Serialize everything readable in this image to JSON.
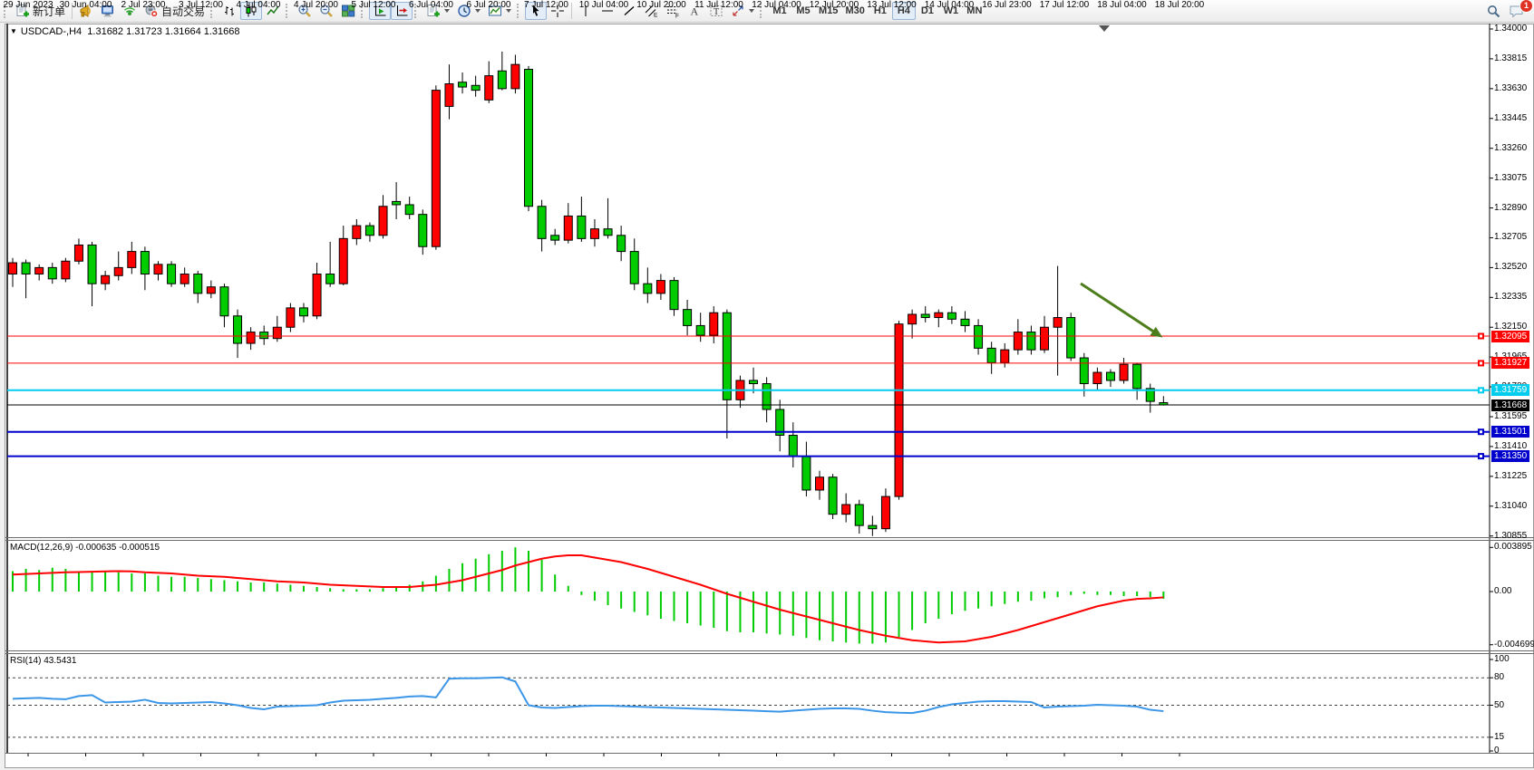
{
  "toolbar": {
    "new_order_label": "新订单",
    "auto_trading_label": "自动交易",
    "timeframes": [
      "M1",
      "M5",
      "M15",
      "M30",
      "H1",
      "H4",
      "D1",
      "W1",
      "MN"
    ],
    "active_timeframe": "H4",
    "notification_count": "1",
    "icons": [
      "new-order-icon",
      "horn-icon",
      "terminal-icon",
      "signal-icon",
      "autotrade-robot-icon",
      "bar-chart-icon",
      "candlestick-chart-icon",
      "line-chart-icon",
      "zoom-in-icon",
      "zoom-out-icon",
      "tile-windows-icon",
      "auto-scroll-icon",
      "chart-shift-icon",
      "indicators-icon",
      "periods-icon",
      "templates-icon",
      "cursor-icon",
      "crosshair-icon",
      "vertical-line-icon",
      "horizontal-line-icon",
      "trendline-icon",
      "channel-icon",
      "fibonacci-icon",
      "text-icon",
      "text-label-icon",
      "arrows-icon",
      "search-icon",
      "chat-icon"
    ]
  },
  "chart": {
    "symbol_period": "USDCAD-,H4",
    "ohlc_text": "1.31682 1.31723 1.31664 1.31668",
    "current_bid": "1.31668",
    "colors": {
      "bull_candle": "#ff0000",
      "bear_candle": "#00cc00",
      "macd_histogram": "#00cc00",
      "macd_signal": "#ff0000",
      "rsi_line": "#3c96e8",
      "annotation_arrow": "#4e7d1c"
    }
  },
  "price_axis": {
    "ticks": [
      "1.34000",
      "1.33815",
      "1.33630",
      "1.33445",
      "1.33260",
      "1.33075",
      "1.32890",
      "1.32705",
      "1.32520",
      "1.32335",
      "1.32150",
      "1.31965",
      "1.31780",
      "1.31595",
      "1.31410",
      "1.31225",
      "1.31040",
      "1.30855"
    ]
  },
  "hlines": [
    {
      "price": "1.32095",
      "value": 1.32095,
      "color": "#ff0000",
      "width": 1
    },
    {
      "price": "1.31927",
      "value": 1.31927,
      "color": "#ff0000",
      "width": 1
    },
    {
      "price": "1.31759",
      "value": 1.31759,
      "color": "#00ccee",
      "width": 2
    },
    {
      "price": "1.31501",
      "value": 1.31501,
      "color": "#0000cc",
      "width": 2
    },
    {
      "price": "1.31350",
      "value": 1.3135,
      "color": "#0000cc",
      "width": 2
    }
  ],
  "indicators": {
    "macd": {
      "label": "MACD(12,26,9) -0.000635 -0.000515",
      "axis_ticks": [
        {
          "text": "0.003895",
          "value": 0.003895
        },
        {
          "text": "0.00",
          "value": 0
        },
        {
          "text": "-0.004699",
          "value": -0.004699
        }
      ]
    },
    "rsi": {
      "label": "RSI(14) 43.5431",
      "axis_ticks": [
        {
          "text": "100",
          "value": 100
        },
        {
          "text": "80",
          "value": 80
        },
        {
          "text": "50",
          "value": 50
        },
        {
          "text": "15",
          "value": 15
        },
        {
          "text": "0",
          "value": 0
        }
      ],
      "dashed_levels": [
        80,
        50,
        15
      ]
    }
  },
  "annotation": {
    "type": "arrow",
    "direction": "down-right",
    "color": "#4e7d1c",
    "from": [
      1192,
      313
    ],
    "to": [
      1274,
      367
    ]
  },
  "chart_data": {
    "type": "candlestick",
    "title": "USDCAD-,H4 1.31682 1.31723 1.31664 1.31668",
    "price_range": [
      1.30855,
      1.34
    ],
    "x_labels": [
      "29 Jun 2023",
      "30 Jun 04:00",
      "2 Jul 23:00",
      "3 Jul 12:00",
      "4 Jul 04:00",
      "4 Jul 20:00",
      "5 Jul 12:00",
      "6 Jul 04:00",
      "6 Jul 20:00",
      "7 Jul 12:00",
      "10 Jul 04:00",
      "10 Jul 20:00",
      "11 Jul 12:00",
      "12 Jul 04:00",
      "12 Jul 20:00",
      "13 Jul 12:00",
      "14 Jul 04:00",
      "16 Jul 23:00",
      "17 Jul 12:00",
      "18 Jul 04:00",
      "18 Jul 20:00"
    ],
    "candles_ohlc": [
      [
        1.3248,
        1.3258,
        1.324,
        1.3255
      ],
      [
        1.3255,
        1.3257,
        1.3233,
        1.3248
      ],
      [
        1.3248,
        1.3254,
        1.3244,
        1.3252
      ],
      [
        1.3252,
        1.3255,
        1.3242,
        1.3245
      ],
      [
        1.3245,
        1.3258,
        1.3243,
        1.3256
      ],
      [
        1.3256,
        1.327,
        1.3254,
        1.3266
      ],
      [
        1.3266,
        1.3268,
        1.3228,
        1.3242
      ],
      [
        1.3242,
        1.325,
        1.3238,
        1.3247
      ],
      [
        1.3247,
        1.3262,
        1.3244,
        1.3252
      ],
      [
        1.3252,
        1.3268,
        1.3248,
        1.3262
      ],
      [
        1.3262,
        1.3265,
        1.3238,
        1.3248
      ],
      [
        1.3248,
        1.3256,
        1.3244,
        1.3254
      ],
      [
        1.3254,
        1.3256,
        1.324,
        1.3242
      ],
      [
        1.3242,
        1.3252,
        1.324,
        1.3248
      ],
      [
        1.3248,
        1.325,
        1.323,
        1.3236
      ],
      [
        1.3236,
        1.3244,
        1.3233,
        1.324
      ],
      [
        1.324,
        1.3242,
        1.3215,
        1.3222
      ],
      [
        1.3222,
        1.3226,
        1.3196,
        1.3205
      ],
      [
        1.3205,
        1.3215,
        1.3201,
        1.3212
      ],
      [
        1.3212,
        1.3216,
        1.3204,
        1.3208
      ],
      [
        1.3208,
        1.3222,
        1.3206,
        1.3215
      ],
      [
        1.3215,
        1.323,
        1.3212,
        1.3227
      ],
      [
        1.3227,
        1.323,
        1.3218,
        1.3222
      ],
      [
        1.3222,
        1.3255,
        1.322,
        1.3248
      ],
      [
        1.3248,
        1.3268,
        1.324,
        1.3242
      ],
      [
        1.3242,
        1.3278,
        1.3241,
        1.327
      ],
      [
        1.327,
        1.3282,
        1.3266,
        1.3278
      ],
      [
        1.3278,
        1.328,
        1.3268,
        1.3272
      ],
      [
        1.3272,
        1.3297,
        1.327,
        1.329
      ],
      [
        1.3293,
        1.3305,
        1.3282,
        1.3291
      ],
      [
        1.3291,
        1.3296,
        1.3282,
        1.3285
      ],
      [
        1.3285,
        1.3288,
        1.326,
        1.3265
      ],
      [
        1.3265,
        1.3365,
        1.3263,
        1.3362
      ],
      [
        1.3352,
        1.3378,
        1.3344,
        1.3366
      ],
      [
        1.3367,
        1.3373,
        1.336,
        1.3364
      ],
      [
        1.3365,
        1.3371,
        1.3358,
        1.3362
      ],
      [
        1.3356,
        1.338,
        1.3354,
        1.3371
      ],
      [
        1.3374,
        1.3386,
        1.3362,
        1.3363
      ],
      [
        1.3363,
        1.3384,
        1.336,
        1.3378
      ],
      [
        1.3375,
        1.3377,
        1.3287,
        1.329
      ],
      [
        1.329,
        1.3294,
        1.3262,
        1.327
      ],
      [
        1.3272,
        1.3276,
        1.3266,
        1.3269
      ],
      [
        1.3269,
        1.3292,
        1.3267,
        1.3284
      ],
      [
        1.3284,
        1.3296,
        1.3268,
        1.327
      ],
      [
        1.327,
        1.3282,
        1.3265,
        1.3276
      ],
      [
        1.3276,
        1.3295,
        1.327,
        1.3272
      ],
      [
        1.3272,
        1.3278,
        1.3256,
        1.3262
      ],
      [
        1.3262,
        1.327,
        1.3238,
        1.3242
      ],
      [
        1.3242,
        1.3252,
        1.323,
        1.3236
      ],
      [
        1.3236,
        1.3248,
        1.3232,
        1.3244
      ],
      [
        1.3244,
        1.3246,
        1.3222,
        1.3226
      ],
      [
        1.3226,
        1.3232,
        1.321,
        1.3216
      ],
      [
        1.3216,
        1.3224,
        1.3206,
        1.321
      ],
      [
        1.321,
        1.3228,
        1.3205,
        1.3224
      ],
      [
        1.3224,
        1.3226,
        1.3146,
        1.317
      ],
      [
        1.317,
        1.3185,
        1.3165,
        1.3182
      ],
      [
        1.3182,
        1.319,
        1.3174,
        1.318
      ],
      [
        1.318,
        1.3184,
        1.3156,
        1.3164
      ],
      [
        1.3164,
        1.317,
        1.3138,
        1.3148
      ],
      [
        1.3148,
        1.3156,
        1.3128,
        1.3135
      ],
      [
        1.3135,
        1.3144,
        1.311,
        1.3114
      ],
      [
        1.3114,
        1.3126,
        1.3108,
        1.3122
      ],
      [
        1.3122,
        1.3124,
        1.3096,
        1.3099
      ],
      [
        1.3099,
        1.3112,
        1.3094,
        1.3105
      ],
      [
        1.3105,
        1.3108,
        1.3087,
        1.3092
      ],
      [
        1.3092,
        1.3098,
        1.30855,
        1.309
      ],
      [
        1.309,
        1.3115,
        1.3088,
        1.311
      ],
      [
        1.311,
        1.3219,
        1.3108,
        1.3217
      ],
      [
        1.3217,
        1.3226,
        1.3208,
        1.3223
      ],
      [
        1.3223,
        1.3228,
        1.3218,
        1.3221
      ],
      [
        1.3221,
        1.3226,
        1.3215,
        1.3224
      ],
      [
        1.3224,
        1.3228,
        1.3217,
        1.322
      ],
      [
        1.322,
        1.3225,
        1.3212,
        1.3216
      ],
      [
        1.3216,
        1.322,
        1.3198,
        1.3202
      ],
      [
        1.3202,
        1.3206,
        1.3186,
        1.3193
      ],
      [
        1.3193,
        1.3205,
        1.319,
        1.3201
      ],
      [
        1.3201,
        1.322,
        1.3198,
        1.3212
      ],
      [
        1.3212,
        1.3216,
        1.3198,
        1.3201
      ],
      [
        1.3201,
        1.3222,
        1.3199,
        1.3215
      ],
      [
        1.3215,
        1.3253,
        1.3185,
        1.3221
      ],
      [
        1.3221,
        1.3224,
        1.3194,
        1.3196
      ],
      [
        1.3196,
        1.3199,
        1.3172,
        1.318
      ],
      [
        1.318,
        1.319,
        1.3176,
        1.3187
      ],
      [
        1.3187,
        1.3189,
        1.3178,
        1.3182
      ],
      [
        1.3182,
        1.3196,
        1.318,
        1.3192
      ],
      [
        1.3192,
        1.3193,
        1.317,
        1.3177
      ],
      [
        1.3177,
        1.318,
        1.3162,
        1.3169
      ],
      [
        1.31682,
        1.31723,
        1.31664,
        1.31668
      ]
    ],
    "macd_histogram": [
      0.0018,
      0.002,
      0.0019,
      0.0021,
      0.002,
      0.0018,
      0.0017,
      0.0018,
      0.0017,
      0.0016,
      0.0016,
      0.0014,
      0.0013,
      0.0013,
      0.0012,
      0.0011,
      0.001,
      0.0009,
      0.0008,
      0.0008,
      0.0007,
      0.0006,
      0.0005,
      0.0004,
      0.0003,
      0.0002,
      0.0002,
      0.0002,
      0.0003,
      0.0004,
      0.0006,
      0.0009,
      0.0014,
      0.002,
      0.0025,
      0.0029,
      0.0033,
      0.0036,
      0.0039,
      0.0036,
      0.0028,
      0.0015,
      0.0005,
      -0.0003,
      -0.0008,
      -0.0012,
      -0.0015,
      -0.0018,
      -0.0021,
      -0.0024,
      -0.0026,
      -0.0028,
      -0.003,
      -0.0032,
      -0.0035,
      -0.0036,
      -0.0036,
      -0.0037,
      -0.0038,
      -0.0039,
      -0.0041,
      -0.0043,
      -0.0044,
      -0.0045,
      -0.0046,
      -0.0046,
      -0.0045,
      -0.004,
      -0.0034,
      -0.0028,
      -0.0024,
      -0.002,
      -0.0017,
      -0.0015,
      -0.0013,
      -0.0011,
      -0.0009,
      -0.0008,
      -0.0006,
      -0.0005,
      -0.0003,
      -0.0002,
      -0.0003,
      -0.0003,
      -0.0004,
      -0.0004,
      -0.0005,
      -0.000635
    ],
    "macd_signal": [
      0.0015,
      0.00155,
      0.0016,
      0.00165,
      0.0017,
      0.00172,
      0.00175,
      0.00178,
      0.0018,
      0.00178,
      0.0017,
      0.00165,
      0.0016,
      0.0015,
      0.0014,
      0.00135,
      0.0013,
      0.0012,
      0.0011,
      0.001,
      0.0009,
      0.00085,
      0.0008,
      0.0007,
      0.0006,
      0.00055,
      0.0005,
      0.00045,
      0.0004,
      0.0004,
      0.0004,
      0.0005,
      0.0006,
      0.0008,
      0.001,
      0.0013,
      0.0016,
      0.0019,
      0.0023,
      0.0026,
      0.0029,
      0.0031,
      0.0032,
      0.0032,
      0.003,
      0.0028,
      0.0026,
      0.0023,
      0.002,
      0.00165,
      0.0013,
      0.00095,
      0.0006,
      0.0002,
      -0.0002,
      -0.00055,
      -0.0009,
      -0.00125,
      -0.0016,
      -0.0019,
      -0.0022,
      -0.0025,
      -0.0028,
      -0.0031,
      -0.0034,
      -0.00365,
      -0.0039,
      -0.0041,
      -0.0043,
      -0.0044,
      -0.0045,
      -0.00445,
      -0.0044,
      -0.0042,
      -0.004,
      -0.0037,
      -0.0034,
      -0.00305,
      -0.0027,
      -0.00235,
      -0.002,
      -0.00165,
      -0.0013,
      -0.00105,
      -0.0008,
      -0.00065,
      -0.0006,
      -0.000515
    ],
    "rsi_values": [
      57,
      57.5,
      58,
      57,
      56.5,
      60,
      61,
      53,
      53.5,
      54,
      56,
      52.5,
      52,
      52.5,
      53,
      53.5,
      52,
      50,
      47,
      45.5,
      48.5,
      49,
      49.5,
      50,
      53,
      55,
      55.5,
      56,
      57,
      58,
      59.5,
      60,
      58.5,
      79,
      79.5,
      79.5,
      80,
      80.5,
      76,
      50,
      47.5,
      47,
      48,
      49,
      49.5,
      49.5,
      49,
      48.5,
      48,
      47.5,
      47,
      46.5,
      46,
      45.5,
      45,
      44.5,
      44,
      43.5,
      43,
      44,
      45,
      46,
      46.5,
      46.5,
      46,
      44,
      42.5,
      41.8,
      41.5,
      44,
      48,
      51,
      52.5,
      54,
      54.5,
      54.5,
      54,
      53.5,
      47.5,
      48.5,
      49,
      49.5,
      50.5,
      50,
      49.5,
      48.5,
      45,
      43.5
    ]
  }
}
